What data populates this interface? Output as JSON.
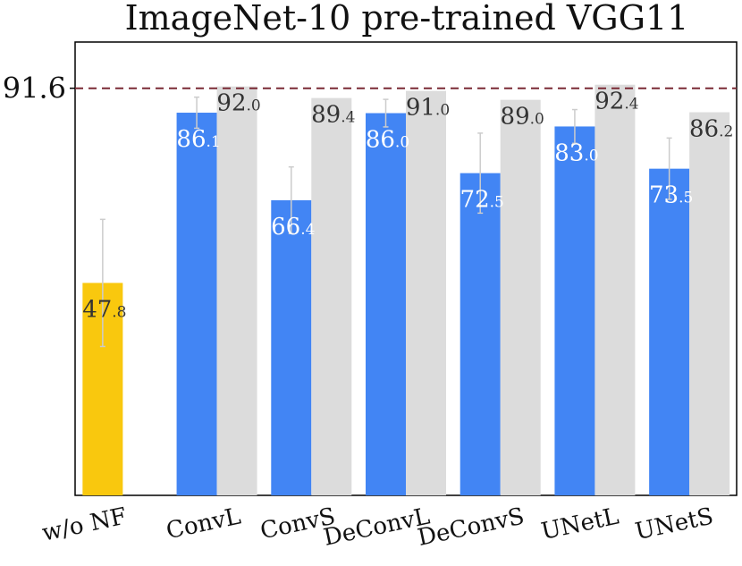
{
  "chart_data": {
    "type": "bar",
    "title": "ImageNet-10 pre-trained VGG11",
    "xlabel": "",
    "ylabel": "",
    "ylim": [
      0,
      102
    ],
    "reference_line": {
      "value": 91.6,
      "label": "91.6",
      "color": "#7a2a35",
      "style": "dashed"
    },
    "categories": [
      "w/o NF",
      "ConvL",
      "ConvS",
      "DeConvL",
      "DeConvS",
      "UNetL",
      "UNetS"
    ],
    "series": [
      {
        "values": [
          47.8,
          86.1,
          66.4,
          86.0,
          72.5,
          83.0,
          73.5
        ],
        "labels": [
          [
            "47",
            ".8"
          ],
          [
            "86",
            ".1"
          ],
          [
            "66",
            ".4"
          ],
          [
            "86",
            ".0"
          ],
          [
            "72",
            ".5"
          ],
          [
            "83",
            ".0"
          ],
          [
            "73",
            ".5"
          ]
        ],
        "error": [
          14.3,
          3.5,
          7.5,
          3.1,
          9.0,
          3.8,
          6.9
        ],
        "colors": [
          "#f9c80e",
          "#4285f4",
          "#4285f4",
          "#4285f4",
          "#4285f4",
          "#4285f4",
          "#4285f4"
        ],
        "label_colors": [
          "#333333",
          "#ffffff",
          "#ffffff",
          "#ffffff",
          "#ffffff",
          "#ffffff",
          "#ffffff"
        ]
      },
      {
        "values": [
          null,
          92.0,
          89.4,
          91.0,
          89.0,
          92.4,
          86.2
        ],
        "labels": [
          null,
          [
            "92",
            ".0"
          ],
          [
            "89",
            ".4"
          ],
          [
            "91",
            ".0"
          ],
          [
            "89",
            ".0"
          ],
          [
            "92",
            ".4"
          ],
          [
            "86",
            ".2"
          ]
        ],
        "color": "#dcdcdc",
        "label_color": "#333333"
      }
    ],
    "grid": false,
    "errorbar_color": "#cccccc"
  }
}
